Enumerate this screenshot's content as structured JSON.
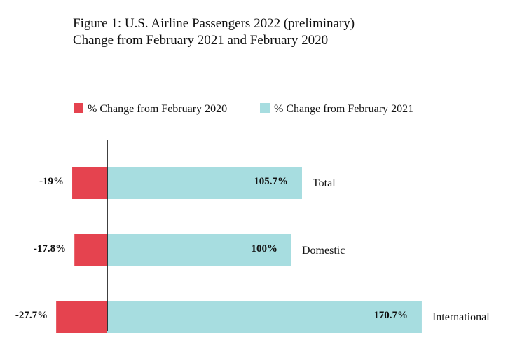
{
  "chart_data": {
    "type": "bar",
    "orientation": "horizontal",
    "title": "Figure 1: U.S. Airline Passengers 2022 (preliminary)",
    "subtitle": "Change from February 2021 and February 2020",
    "categories": [
      "Total",
      "Domestic",
      "International"
    ],
    "series": [
      {
        "name": "% Change from February 2020",
        "color": "#e5434f",
        "values": [
          -19,
          -17.8,
          -27.7
        ],
        "labels": [
          "-19%",
          "-17.8%",
          "-27.7%"
        ]
      },
      {
        "name": "% Change from February 2021",
        "color": "#a7dde0",
        "values": [
          105.7,
          100,
          170.7
        ],
        "labels": [
          "105.7%",
          "100%",
          "170.7%"
        ]
      }
    ],
    "legend_position": "top",
    "grid": false,
    "xlim": [
      -30,
      175
    ]
  }
}
